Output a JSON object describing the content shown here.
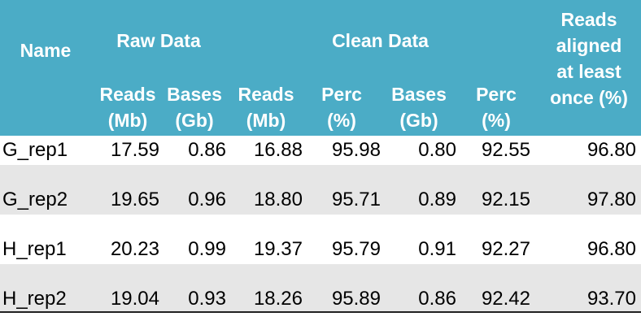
{
  "header": {
    "name": "Name",
    "raw_data": "Raw Data",
    "clean_data": "Clean Data",
    "aligned_line1": "Reads",
    "aligned_line2": "aligned",
    "aligned_line3": "at least",
    "aligned_line4": "once (%)",
    "sub": [
      {
        "line1": "Reads",
        "line2": "(Mb)"
      },
      {
        "line1": "Bases",
        "line2": "(Gb)"
      },
      {
        "line1": "Reads",
        "line2": "(Mb)"
      },
      {
        "line1": "Perc",
        "line2": "(%)"
      },
      {
        "line1": "Bases",
        "line2": "(Gb)"
      },
      {
        "line1": "Perc",
        "line2": "(%)"
      }
    ]
  },
  "rows": [
    {
      "name": "G_rep1",
      "v": [
        "17.59",
        "0.86",
        "16.88",
        "95.98",
        "0.80",
        "92.55",
        "96.80"
      ]
    },
    {
      "name": "G_rep2",
      "v": [
        "19.65",
        "0.96",
        "18.80",
        "95.71",
        "0.89",
        "92.15",
        "97.80"
      ]
    },
    {
      "name": "H_rep1",
      "v": [
        "20.23",
        "0.99",
        "19.37",
        "95.79",
        "0.91",
        "92.27",
        "96.80"
      ]
    },
    {
      "name": "H_rep2",
      "v": [
        "19.04",
        "0.93",
        "18.26",
        "95.89",
        "0.86",
        "92.42",
        "93.70"
      ]
    }
  ],
  "colors": {
    "header_bg": "#4bacc6",
    "shade_bg": "#e6e6e6"
  }
}
